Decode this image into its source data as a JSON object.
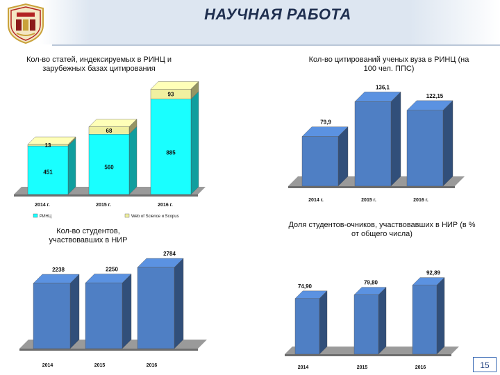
{
  "page": {
    "title": "НАУЧНАЯ РАБОТА",
    "page_number": "15"
  },
  "colors": {
    "blue": "#4f7fc4",
    "cyan": "#19ffff",
    "yellow": "#f0f0a0",
    "header_bg": "#dde6f1"
  },
  "chart_data": [
    {
      "type": "bar",
      "stacked": true,
      "title": "Кол-во статей, индексируемых в РИНЦ и зарубежных базах цитирования",
      "categories": [
        "2014 г.",
        "2015 г.",
        "2016 г."
      ],
      "series": [
        {
          "name": "РИНЦ",
          "values": [
            451,
            560,
            885
          ]
        },
        {
          "name": "Web of Science и Scopus",
          "values": [
            13,
            68,
            93
          ]
        }
      ],
      "ylim": [
        0,
        1000
      ]
    },
    {
      "type": "bar",
      "title": "Кол-во цитирований ученых вуза в РИНЦ (на 100 чел. ППС)",
      "categories": [
        "2014 г.",
        "2015 г.",
        "2016 г."
      ],
      "values": [
        79.9,
        136.1,
        122.15
      ],
      "value_labels": [
        "79,9",
        "136,1",
        "122,15"
      ],
      "ylim": [
        0,
        150
      ]
    },
    {
      "type": "bar",
      "title": "Кол-во студентов, участвовавших в НИР",
      "categories": [
        "2014",
        "2015",
        "2016"
      ],
      "values": [
        2238,
        2250,
        2784
      ],
      "value_labels": [
        "2238",
        "2250",
        "2784"
      ],
      "ylim": [
        0,
        3000
      ]
    },
    {
      "type": "bar",
      "title": "Доля студентов-очников, участвовавших в НИР (в % от общего числа)",
      "categories": [
        "2014",
        "2015",
        "2016"
      ],
      "values": [
        74.9,
        79.8,
        92.89
      ],
      "value_labels": [
        "74,90",
        "79,80",
        "92,89"
      ],
      "ylim": [
        0,
        100
      ]
    }
  ]
}
